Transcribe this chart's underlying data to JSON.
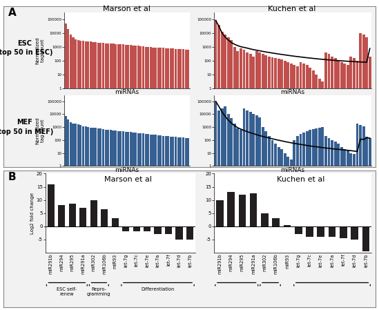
{
  "title_A_left": "Marson et al",
  "title_A_right": "Kuchen et al",
  "title_B_left": "Marson et al",
  "title_B_right": "Kuchen et al",
  "label_A": "A",
  "label_B": "B",
  "esc_label": "ESC\n(top 50 in ESC)",
  "mef_label": "MEF\n(top 50 in MEF)",
  "ylabel_A": "Normalized\ntag count",
  "xlabel_A": "miRNAs",
  "ylabel_B": "Log2 fold change",
  "bar_color_esc": "#C0504D",
  "bar_color_mef": "#376092",
  "bar_color_B": "#231F20",
  "line_color": "#000000",
  "marson_esc_values": [
    50000,
    20000,
    8000,
    5000,
    3500,
    3000,
    2800,
    2600,
    2500,
    2400,
    2300,
    2200,
    2100,
    2000,
    1900,
    1850,
    1800,
    1750,
    1700,
    1650,
    1600,
    1550,
    1500,
    1450,
    1400,
    1350,
    1300,
    1250,
    1200,
    1150,
    1100,
    1060,
    1020,
    980,
    940,
    910,
    880,
    860,
    840,
    820,
    800,
    780,
    760,
    740,
    720,
    700,
    680,
    660,
    640,
    620
  ],
  "marson_mef_values": [
    7000,
    4000,
    2500,
    2000,
    1800,
    1600,
    1400,
    1200,
    1100,
    1000,
    950,
    900,
    850,
    800,
    750,
    700,
    660,
    630,
    600,
    570,
    540,
    510,
    490,
    470,
    450,
    430,
    410,
    390,
    370,
    350,
    335,
    320,
    305,
    290,
    275,
    260,
    248,
    236,
    225,
    215,
    205,
    196,
    188,
    180,
    172,
    165,
    158,
    152,
    146,
    140
  ],
  "kuchen_esc_values": [
    80000,
    40000,
    12000,
    8000,
    5000,
    3000,
    1000,
    500,
    800,
    600,
    400,
    300,
    200,
    500,
    400,
    300,
    250,
    200,
    180,
    160,
    140,
    120,
    100,
    80,
    60,
    50,
    40,
    80,
    60,
    50,
    30,
    20,
    10,
    5,
    3,
    400,
    300,
    200,
    150,
    100,
    80,
    60,
    50,
    200,
    150,
    100,
    10000,
    8000,
    5000,
    200
  ],
  "kuchen_esc_line": [
    80000,
    30000,
    10000,
    5000,
    3000,
    2000,
    1500,
    1200,
    1000,
    900,
    800,
    700,
    620,
    560,
    510,
    460,
    420,
    385,
    355,
    325,
    300,
    278,
    258,
    240,
    223,
    208,
    195,
    183,
    172,
    162,
    153,
    145,
    137,
    130,
    124,
    118,
    113,
    108,
    104,
    100,
    96,
    93,
    90,
    87,
    85,
    82,
    80,
    78,
    76,
    750
  ],
  "kuchen_mef_values": [
    100000,
    20000,
    30000,
    40000,
    10000,
    5000,
    2000,
    800,
    600,
    30000,
    20000,
    15000,
    10000,
    8000,
    6000,
    1000,
    500,
    200,
    100,
    50,
    30,
    20,
    10,
    5,
    3,
    100,
    200,
    300,
    400,
    500,
    600,
    700,
    800,
    900,
    1000,
    200,
    150,
    100,
    80,
    50,
    30,
    20,
    15,
    10,
    8,
    2000,
    1500,
    1200,
    180,
    150
  ],
  "kuchen_mef_line": [
    100000,
    40000,
    15000,
    7000,
    3500,
    2000,
    1300,
    900,
    700,
    550,
    450,
    370,
    310,
    260,
    220,
    190,
    165,
    143,
    125,
    110,
    97,
    86,
    76,
    68,
    61,
    55,
    50,
    46,
    42,
    38,
    35,
    32,
    30,
    28,
    26,
    24,
    23,
    21,
    20,
    19,
    18,
    17,
    16,
    15,
    14,
    13,
    120,
    110,
    150,
    140
  ],
  "marson_fold": [
    16,
    8,
    8.5,
    7,
    10,
    6.5,
    3,
    -2,
    -2,
    -2,
    -3,
    -3,
    -5,
    -5
  ],
  "marson_fold_labels": [
    "miR291b",
    "miR294",
    "miR295",
    "miR291a",
    "miR302",
    "miR106b",
    "miR93",
    "let-7g",
    "let-7c",
    "let-7e",
    "let-7a",
    "let-7f",
    "let-7d",
    "let-7b"
  ],
  "kuchen_fold": [
    10,
    13,
    12,
    12.5,
    5,
    3,
    0.5,
    -3,
    -4,
    -4,
    -4,
    -4.5,
    -5,
    -9.5
  ],
  "kuchen_fold_labels": [
    "miR291b",
    "miR294",
    "miR295",
    "miR291a",
    "miR302",
    "miR106b",
    "miR93",
    "let-7g",
    "let-7c",
    "let-7e",
    "let-7a",
    "let-7f",
    "let-7d",
    "let-7b"
  ],
  "bg_color": "#FFFFFF",
  "panel_bg": "#F2F2F2",
  "border_color": "#888888"
}
